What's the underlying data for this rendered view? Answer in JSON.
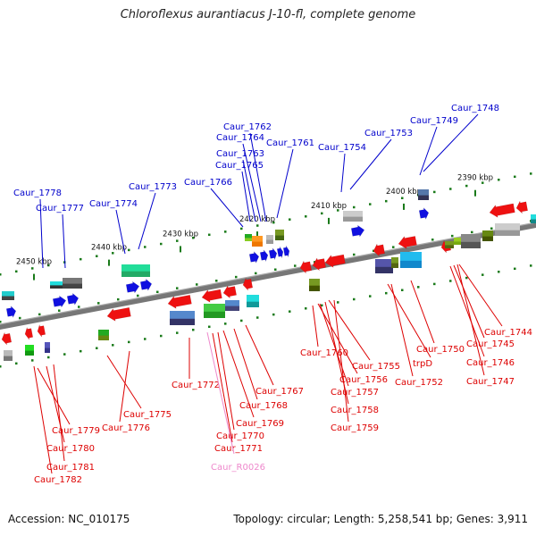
{
  "title": "Chloroflexus aurantiacus J-10-fl, complete genome",
  "footer": {
    "accession": "Accession: NC_010175",
    "summary": "Topology: circular; Length: 5,258,541 bp; Genes: 3,911"
  },
  "colors": {
    "forward_label": "#0000cc",
    "reverse_label": "#dd0000",
    "rna_label": "#ee88cc",
    "tick": "#1a7a1a",
    "backbone": "#777777"
  },
  "scale_labels": [
    "2450 kbp",
    "2440 kbp",
    "2430 kbp",
    "2420 kbp",
    "2410 kbp",
    "2400 kbp",
    "2390 kbp"
  ],
  "forward_labels": [
    "Caur_1778",
    "Caur_1777",
    "Caur_1774",
    "Caur_1773",
    "Caur_1766",
    "Caur_1765",
    "Caur_1763",
    "Caur_1764",
    "Caur_1762",
    "Caur_1761",
    "Caur_1754",
    "Caur_1753",
    "Caur_1749",
    "Caur_1748"
  ],
  "reverse_labels": [
    "Caur_1779",
    "Caur_1780",
    "Caur_1781",
    "Caur_1782",
    "Caur_1775",
    "Caur_1776",
    "Caur_1772",
    "Caur_1771",
    "Caur_1770",
    "Caur_1769",
    "Caur_1768",
    "Caur_1767",
    "Caur_1760",
    "Caur_1756",
    "Caur_1755",
    "Caur_1757",
    "Caur_1758",
    "Caur_1759",
    "trpD",
    "Caur_1752",
    "Caur_1750",
    "Caur_1744",
    "Caur_1745",
    "Caur_1746",
    "Caur_1747"
  ],
  "rna_labels": [
    "Caur_R0026"
  ]
}
